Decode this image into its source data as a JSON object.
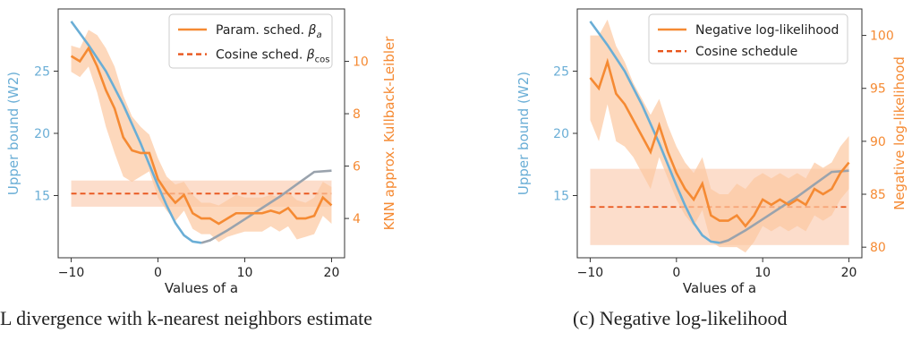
{
  "chart_data": [
    {
      "type": "line",
      "caption": "L divergence with k-nearest neighbors estimate",
      "xlabel": "Values of a",
      "ylabel_left": "Upper bound (W2)",
      "ylabel_right": "KNN approx. Kullback-Leibler",
      "xlim": [
        -11.5,
        21.5
      ],
      "ylim_left": [
        10,
        30
      ],
      "ylim_right": [
        2.5,
        12
      ],
      "x_ticks": [
        -10,
        0,
        10,
        20
      ],
      "x_tick_labels": [
        "−10",
        "0",
        "10",
        "20"
      ],
      "y_left_ticks": [
        15,
        20,
        25
      ],
      "y_left_tick_labels": [
        "15",
        "20",
        "25"
      ],
      "y_right_ticks": [
        4,
        6,
        8,
        10
      ],
      "y_right_tick_labels": [
        "4",
        "6",
        "8",
        "10"
      ],
      "legend_position": "top-right",
      "legend": [
        {
          "label_main": "Param. sched. ",
          "label_sym": "β",
          "label_sub": "a",
          "style": "solid"
        },
        {
          "label_main": "Cosine sched. ",
          "label_sym": "β",
          "label_sub": "cos",
          "style": "dashed"
        }
      ],
      "series": [
        {
          "name": "Upper bound (W2)",
          "axis": "left",
          "color_main": "#6aaed6",
          "color_tail": "#9aa3ad",
          "x": [
            -10,
            -8,
            -6,
            -4,
            -2,
            0,
            1,
            2,
            3,
            4,
            5,
            6,
            8,
            10,
            12,
            14,
            16,
            18,
            20
          ],
          "y": [
            29.0,
            27.1,
            25.0,
            22.3,
            19.2,
            15.8,
            14.2,
            12.8,
            11.8,
            11.3,
            11.2,
            11.4,
            12.2,
            13.1,
            14.0,
            14.9,
            15.9,
            16.9,
            17.0
          ]
        },
        {
          "name": "Param. sched. βa",
          "axis": "right",
          "color": "#f58a33",
          "x": [
            -10,
            -9,
            -8,
            -7,
            -6,
            -5,
            -4,
            -3,
            -2,
            -1,
            0,
            1,
            2,
            3,
            4,
            5,
            6,
            7,
            8,
            9,
            10,
            11,
            12,
            13,
            14,
            15,
            16,
            17,
            18,
            19,
            20
          ],
          "y": [
            10.2,
            10.0,
            10.5,
            9.8,
            8.9,
            8.2,
            7.1,
            6.6,
            6.5,
            6.5,
            5.5,
            5.0,
            4.6,
            4.9,
            4.2,
            4.0,
            4.0,
            3.8,
            4.0,
            4.2,
            4.2,
            4.2,
            4.2,
            4.3,
            4.2,
            4.4,
            4.0,
            4.0,
            4.1,
            4.8,
            4.5
          ],
          "band_upper": [
            10.6,
            10.5,
            11.2,
            11.0,
            10.5,
            9.8,
            8.7,
            7.9,
            7.5,
            7.2,
            6.3,
            5.6,
            5.3,
            5.4,
            4.9,
            4.6,
            4.6,
            4.5,
            4.7,
            4.9,
            4.8,
            4.8,
            4.8,
            4.9,
            4.8,
            5.0,
            4.7,
            4.6,
            4.8,
            5.4,
            5.2
          ],
          "band_lower": [
            9.6,
            9.4,
            9.8,
            8.8,
            7.5,
            6.5,
            5.6,
            5.4,
            5.6,
            5.8,
            4.8,
            4.3,
            3.9,
            4.3,
            3.6,
            3.4,
            3.4,
            3.1,
            3.3,
            3.4,
            3.5,
            3.5,
            3.5,
            3.7,
            3.5,
            3.7,
            3.2,
            3.3,
            3.4,
            4.1,
            3.8
          ]
        },
        {
          "name": "Cosine sched. βcos",
          "axis": "right",
          "color": "#e8541a",
          "style": "dashed",
          "value": 4.95,
          "band": [
            4.45,
            5.45
          ]
        }
      ]
    },
    {
      "type": "line",
      "caption": "(c) Negative log-likelihood",
      "xlabel": "Values of a",
      "ylabel_left": "Upper bound (W2)",
      "ylabel_right": "Negative log-likelihood",
      "xlim": [
        -11.5,
        21.5
      ],
      "ylim_left": [
        10,
        30
      ],
      "ylim_right": [
        79,
        102.5
      ],
      "x_ticks": [
        -10,
        0,
        10,
        20
      ],
      "x_tick_labels": [
        "−10",
        "0",
        "10",
        "20"
      ],
      "y_left_ticks": [
        15,
        20,
        25
      ],
      "y_left_tick_labels": [
        "15",
        "20",
        "25"
      ],
      "y_right_ticks": [
        80,
        85,
        90,
        95,
        100
      ],
      "y_right_tick_labels": [
        "80",
        "85",
        "90",
        "95",
        "100"
      ],
      "legend_position": "top-right",
      "legend": [
        {
          "label_main": "Negative log-likelihood",
          "label_sym": "",
          "label_sub": "",
          "style": "solid"
        },
        {
          "label_main": "Cosine schedule",
          "label_sym": "",
          "label_sub": "",
          "style": "dashed"
        }
      ],
      "series": [
        {
          "name": "Upper bound (W2)",
          "axis": "left",
          "color_main": "#6aaed6",
          "color_tail": "#9aa3ad",
          "x": [
            -10,
            -8,
            -6,
            -4,
            -2,
            0,
            1,
            2,
            3,
            4,
            5,
            6,
            8,
            10,
            12,
            14,
            16,
            18,
            20
          ],
          "y": [
            29.0,
            27.1,
            25.0,
            22.3,
            19.2,
            15.8,
            14.2,
            12.8,
            11.8,
            11.3,
            11.2,
            11.4,
            12.2,
            13.1,
            14.0,
            14.9,
            15.9,
            16.9,
            17.0
          ]
        },
        {
          "name": "Negative log-likelihood",
          "axis": "right",
          "color": "#f58a33",
          "x": [
            -10,
            -9,
            -8,
            -7,
            -6,
            -5,
            -4,
            -3,
            -2,
            -1,
            0,
            1,
            2,
            3,
            4,
            5,
            6,
            7,
            8,
            9,
            10,
            11,
            12,
            13,
            14,
            15,
            16,
            17,
            18,
            19,
            20
          ],
          "y": [
            96.0,
            95.0,
            97.5,
            94.5,
            93.5,
            92.0,
            90.5,
            89.0,
            91.5,
            89.0,
            87.0,
            85.5,
            84.5,
            86.0,
            83.0,
            82.5,
            82.5,
            83.0,
            82.0,
            83.0,
            84.5,
            84.0,
            84.5,
            84.0,
            84.5,
            84.0,
            85.5,
            85.0,
            85.5,
            87.0,
            88.0
          ],
          "band_upper": [
            100.0,
            100.0,
            101.5,
            99.0,
            97.5,
            95.5,
            94.0,
            92.5,
            94.0,
            91.5,
            89.5,
            88.0,
            87.0,
            88.5,
            85.5,
            85.0,
            85.0,
            86.0,
            85.5,
            86.5,
            87.0,
            86.5,
            87.0,
            86.5,
            87.0,
            86.5,
            88.0,
            87.5,
            88.0,
            89.5,
            90.5
          ],
          "band_lower": [
            92.0,
            90.0,
            93.5,
            90.0,
            89.5,
            88.5,
            87.0,
            85.5,
            88.5,
            86.5,
            84.5,
            83.0,
            82.0,
            83.5,
            80.5,
            80.0,
            80.0,
            80.0,
            79.5,
            80.5,
            82.0,
            81.5,
            82.0,
            81.5,
            82.0,
            81.5,
            83.0,
            82.5,
            83.0,
            84.5,
            85.5
          ]
        },
        {
          "name": "Cosine schedule",
          "axis": "right",
          "color": "#e8541a",
          "style": "dashed",
          "value": 83.8,
          "band": [
            80.2,
            87.4
          ]
        }
      ]
    }
  ]
}
